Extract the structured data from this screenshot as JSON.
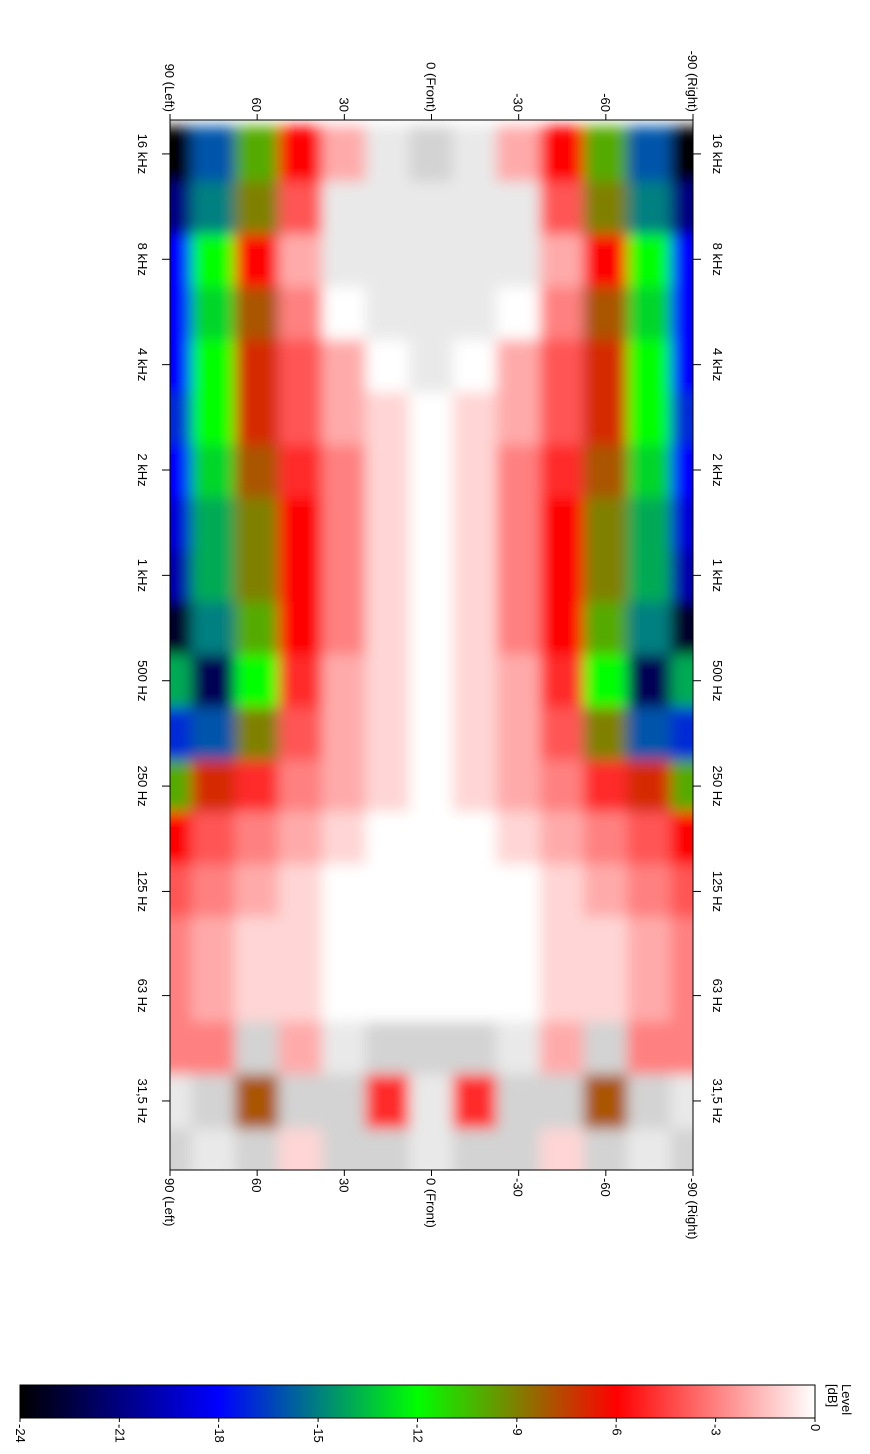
{
  "chart_data": {
    "type": "heatmap",
    "x": [
      90,
      75,
      60,
      45,
      30,
      15,
      0,
      -15,
      -30,
      -45,
      -60,
      -75,
      -90
    ],
    "y": [
      22,
      31.5,
      45,
      63,
      90,
      125,
      180,
      250,
      355,
      500,
      710,
      1000,
      1400,
      2000,
      2800,
      4000,
      5600,
      8000,
      11200,
      16000
    ],
    "z": [
      [
        2,
        1,
        2,
        -1,
        2,
        2,
        1,
        2,
        2,
        -1,
        2,
        1,
        2
      ],
      [
        1,
        2,
        -8,
        2,
        2,
        -5,
        1,
        -5,
        2,
        2,
        -8,
        2,
        1
      ],
      [
        -3,
        -3,
        2,
        -2,
        1,
        2,
        2,
        2,
        1,
        -2,
        2,
        -3,
        -3
      ],
      [
        -3,
        -2,
        -1,
        -1,
        0,
        0,
        0,
        0,
        0,
        -1,
        -1,
        -2,
        -3
      ],
      [
        -3,
        -2,
        -1,
        -1,
        0,
        0,
        0,
        0,
        0,
        -1,
        -1,
        -2,
        -3
      ],
      [
        -4,
        -3,
        -2,
        -1,
        0,
        0,
        0,
        0,
        0,
        -1,
        -2,
        -3,
        -4
      ],
      [
        -6,
        -4,
        -3,
        -2,
        -1,
        0,
        0,
        0,
        -1,
        -2,
        -3,
        -4,
        -6
      ],
      [
        -10,
        -7,
        -5,
        -3,
        -2,
        -1,
        0,
        -1,
        -2,
        -3,
        -5,
        -7,
        -10
      ],
      [
        -17,
        -16,
        -9,
        -4,
        -2,
        -1,
        0,
        -1,
        -2,
        -4,
        -9,
        -16,
        -17
      ],
      [
        -14,
        -22,
        -12,
        -5,
        -2,
        -1,
        0,
        -1,
        -2,
        -5,
        -12,
        -22,
        -14
      ],
      [
        -23,
        -15,
        -10,
        -6,
        -3,
        -1,
        0,
        -1,
        -3,
        -6,
        -10,
        -15,
        -23
      ],
      [
        -20,
        -14,
        -9,
        -6,
        -3,
        -1,
        0,
        -1,
        -3,
        -6,
        -9,
        -14,
        -20
      ],
      [
        -19,
        -14,
        -9,
        -6,
        -3,
        -1,
        0,
        -1,
        -3,
        -6,
        -9,
        -14,
        -19
      ],
      [
        -18,
        -13,
        -8,
        -5,
        -3,
        -1,
        0,
        -1,
        -3,
        -5,
        -8,
        -13,
        -18
      ],
      [
        -17,
        -12,
        -7,
        -4,
        -2,
        -1,
        0,
        -1,
        -2,
        -4,
        -7,
        -12,
        -17
      ],
      [
        -18,
        -12,
        -7,
        -4,
        -2,
        0,
        1,
        0,
        -2,
        -4,
        -7,
        -12,
        -18
      ],
      [
        -18,
        -13,
        -8,
        -3,
        0,
        1,
        1,
        1,
        0,
        -3,
        -8,
        -13,
        -18
      ],
      [
        -18,
        -12,
        -6,
        -2,
        1,
        1,
        1,
        1,
        1,
        -2,
        -6,
        -12,
        -18
      ],
      [
        -21,
        -15,
        -9,
        -4,
        1,
        1,
        1,
        1,
        1,
        -4,
        -9,
        -15,
        -21
      ],
      [
        -24,
        -16,
        -10,
        -6,
        -2,
        1,
        2,
        1,
        -2,
        -6,
        -10,
        -16,
        -24
      ]
    ],
    "xlim": [
      90,
      -90
    ],
    "xticks": [
      {
        "value": 90,
        "label": "90 (Left)"
      },
      60,
      30,
      {
        "value": 0,
        "label": "0 (Front)"
      },
      -30,
      -60,
      {
        "value": -90,
        "label": "-90 (Right)"
      }
    ],
    "ylim": [
      20,
      20000
    ],
    "log_y": true,
    "yticks": [
      {
        "value": 31.5,
        "label": "31,5 Hz"
      },
      {
        "value": 63,
        "label": "63 Hz"
      },
      {
        "value": 125,
        "label": "125 Hz"
      },
      {
        "value": 250,
        "label": "250 Hz"
      },
      {
        "value": 500,
        "label": "500 Hz"
      },
      {
        "value": 1000,
        "label": "1 kHz"
      },
      {
        "value": 2000,
        "label": "2 kHz"
      },
      {
        "value": 4000,
        "label": "4 kHz"
      },
      {
        "value": 8000,
        "label": "8 kHz"
      },
      {
        "value": 16000,
        "label": "16 kHz"
      }
    ],
    "colorscale": [
      [
        -24,
        "#000000"
      ],
      [
        -18,
        "#0000ff"
      ],
      [
        -12,
        "#00ff00"
      ],
      [
        -6,
        "#ff0000"
      ],
      [
        0,
        "#ffffff"
      ],
      [
        3,
        "#bdbdbd"
      ]
    ],
    "clim": [
      -24,
      0
    ],
    "cticks": [
      -24,
      -21,
      -18,
      -15,
      -12,
      -9,
      -6,
      -3,
      0
    ],
    "colorbar_title": "Level",
    "colorbar_unit": "[dB]"
  }
}
